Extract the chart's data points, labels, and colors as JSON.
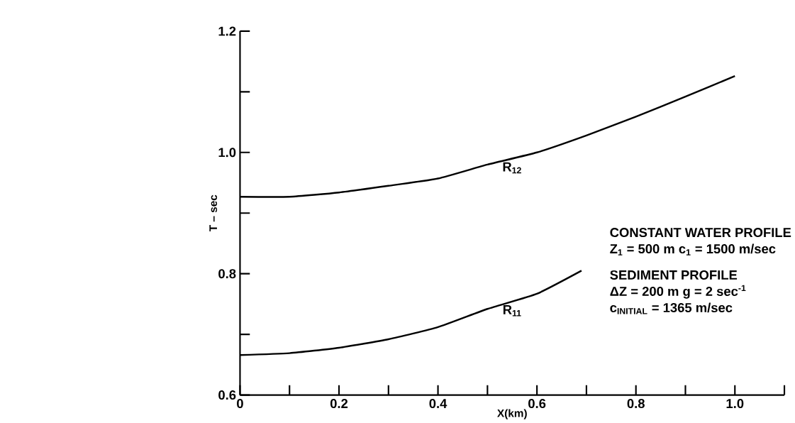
{
  "chart_data": {
    "type": "line",
    "xlabel": "X(km)",
    "ylabel": "T – sec",
    "xlim": [
      0,
      1.1
    ],
    "ylim": [
      0.6,
      1.2
    ],
    "xticks": [
      0,
      {
        "value": 0.1,
        "label": null
      },
      0.2,
      {
        "value": 0.3,
        "label": null
      },
      0.4,
      {
        "value": 0.5,
        "label": null
      },
      0.6,
      {
        "value": 0.7,
        "label": null
      },
      0.8,
      {
        "value": 0.9,
        "label": null
      },
      {
        "value": 1.0,
        "label": "1.0"
      },
      {
        "value": 1.1,
        "label": null
      }
    ],
    "yticks": [
      0.6,
      {
        "value": 0.7,
        "label": null
      },
      0.8,
      {
        "value": 0.9,
        "label": null
      },
      {
        "value": 1.0,
        "label": "1.0"
      },
      {
        "value": 1.1,
        "label": null
      },
      1.2
    ],
    "grid": false,
    "legend": false,
    "marker": "none",
    "line_style": "solid",
    "series": [
      {
        "name": "R$_{12}$",
        "color": "#000000",
        "x": [
          0,
          0.1,
          0.2,
          0.3,
          0.4,
          0.5,
          0.6,
          0.7,
          0.8,
          0.9,
          1.0
        ],
        "values": [
          0.927,
          0.927,
          0.934,
          0.945,
          0.957,
          0.98,
          1.0,
          1.028,
          1.059,
          1.092,
          1.126
        ]
      },
      {
        "name": "R$_{11}$",
        "color": "#000000",
        "x": [
          0,
          0.1,
          0.2,
          0.3,
          0.4,
          0.5,
          0.6,
          0.69
        ],
        "values": [
          0.666,
          0.669,
          0.678,
          0.692,
          0.712,
          0.742,
          0.767,
          0.805
        ]
      }
    ],
    "annotations": [
      "CONSTANT WATER PROFILE",
      "Z$_{1}$ = 500 m    c$_{1}$ = 1500 m/sec",
      "SEDIMENT PROFILE",
      "ΔZ = 200 m    g = 2 sec$^{-1}$",
      "c$_{INITIAL}$ = 1365 m/sec"
    ]
  }
}
